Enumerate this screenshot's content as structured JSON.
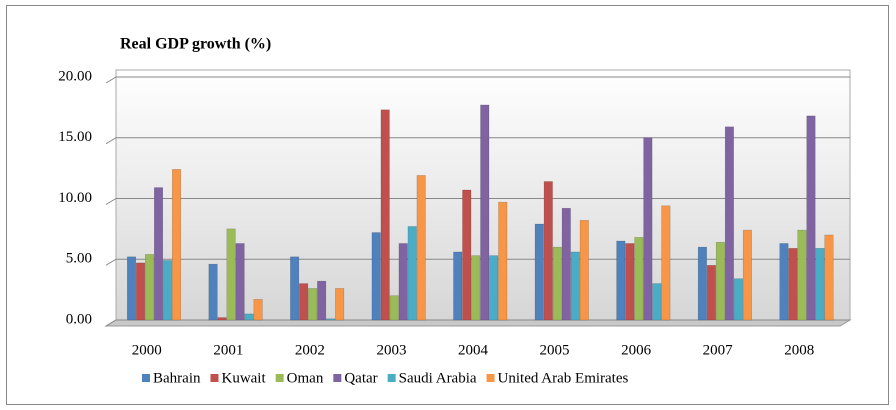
{
  "chart_data": {
    "type": "bar",
    "title": "Real GDP growth (%)",
    "categories": [
      "2000",
      "2001",
      "2002",
      "2003",
      "2004",
      "2005",
      "2006",
      "2007",
      "2008"
    ],
    "series": [
      {
        "name": "Bahrain",
        "color": "#4f81bd",
        "values": [
          5.2,
          4.6,
          5.2,
          7.2,
          5.6,
          7.9,
          6.5,
          6.0,
          6.3
        ]
      },
      {
        "name": "Kuwait",
        "color": "#c0504d",
        "values": [
          4.7,
          0.2,
          3.0,
          17.3,
          10.7,
          11.4,
          6.3,
          4.5,
          5.9
        ]
      },
      {
        "name": "Oman",
        "color": "#9bbb59",
        "values": [
          5.4,
          7.5,
          2.6,
          2.0,
          5.3,
          6.0,
          6.8,
          6.4,
          7.4
        ]
      },
      {
        "name": "Qatar",
        "color": "#8064a2",
        "values": [
          10.9,
          6.3,
          3.2,
          6.3,
          17.7,
          9.2,
          15.0,
          15.9,
          16.8
        ]
      },
      {
        "name": "Saudi Arabia",
        "color": "#4bacc6",
        "values": [
          4.9,
          0.5,
          0.1,
          7.7,
          5.3,
          5.6,
          3.0,
          3.4,
          5.9
        ]
      },
      {
        "name": "United Arab Emirates",
        "color": "#f79646",
        "values": [
          12.4,
          1.7,
          2.6,
          11.9,
          9.7,
          8.2,
          9.4,
          7.4,
          7.0
        ]
      }
    ],
    "ylim": [
      0,
      20
    ],
    "yticks": [
      {
        "value": 0,
        "label": "0.00"
      },
      {
        "value": 5,
        "label": "5.00"
      },
      {
        "value": 10,
        "label": "10.00"
      },
      {
        "value": 15,
        "label": "15.00"
      },
      {
        "value": 20,
        "label": "20.00"
      }
    ],
    "grid": true,
    "legend": "bottom"
  }
}
